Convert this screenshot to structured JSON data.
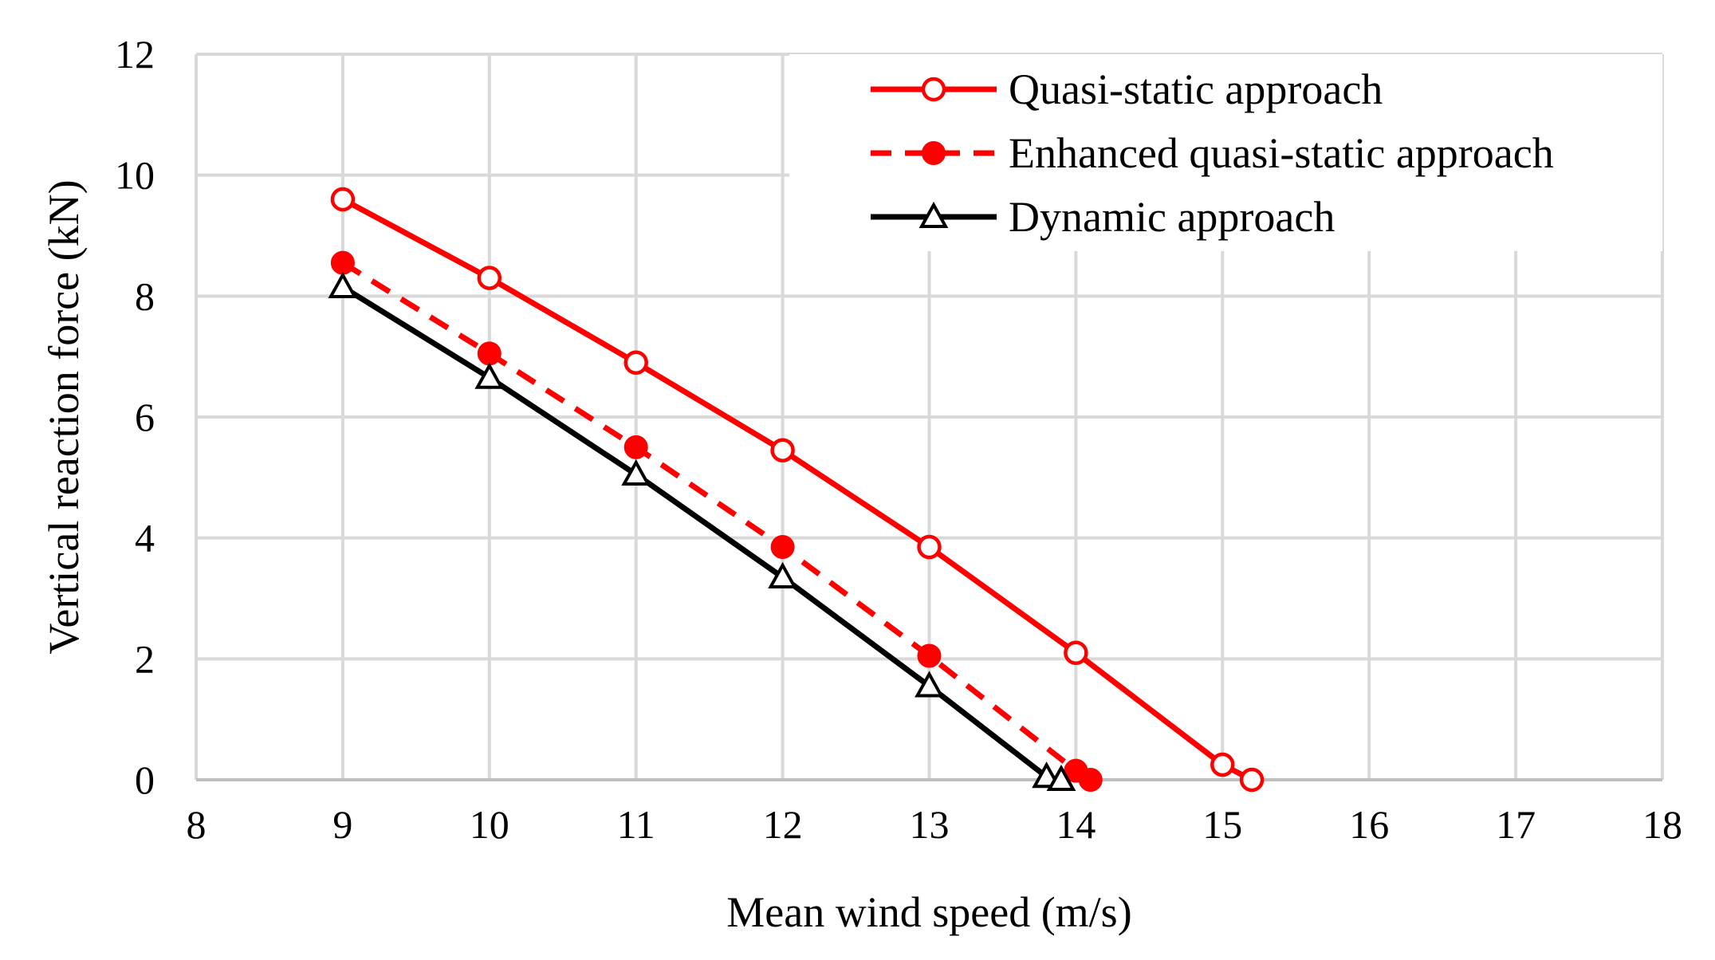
{
  "chart_data": {
    "type": "line",
    "title": "",
    "xlabel": "Mean wind speed (m/s)",
    "ylabel": "Vertical  reaction force (kN)",
    "xlim": [
      8,
      18
    ],
    "ylim": [
      0,
      12
    ],
    "xticks": [
      8,
      9,
      10,
      11,
      12,
      13,
      14,
      15,
      16,
      17,
      18
    ],
    "yticks": [
      0,
      2,
      4,
      6,
      8,
      10,
      12
    ],
    "grid": true,
    "legend_position": "top-right",
    "series": [
      {
        "name": "Quasi-static approach",
        "color": "#ff0000",
        "line_style": "solid",
        "marker": "open-circle",
        "x": [
          9,
          10,
          11,
          12,
          13,
          14,
          15,
          15.2
        ],
        "y": [
          9.6,
          8.3,
          6.9,
          5.45,
          3.85,
          2.1,
          0.25,
          0
        ]
      },
      {
        "name": "Enhanced quasi-static approach",
        "color": "#ff0000",
        "line_style": "dashed",
        "marker": "filled-circle",
        "x": [
          9,
          10,
          11,
          12,
          13,
          14,
          14.1
        ],
        "y": [
          8.55,
          7.05,
          5.5,
          3.85,
          2.05,
          0.15,
          0
        ]
      },
      {
        "name": "Dynamic approach",
        "color": "#000000",
        "line_style": "solid",
        "marker": "open-triangle",
        "x": [
          9,
          10,
          11,
          12,
          13,
          13.8,
          13.9
        ],
        "y": [
          8.15,
          6.65,
          5.05,
          3.35,
          1.55,
          0.05,
          0
        ]
      }
    ]
  }
}
